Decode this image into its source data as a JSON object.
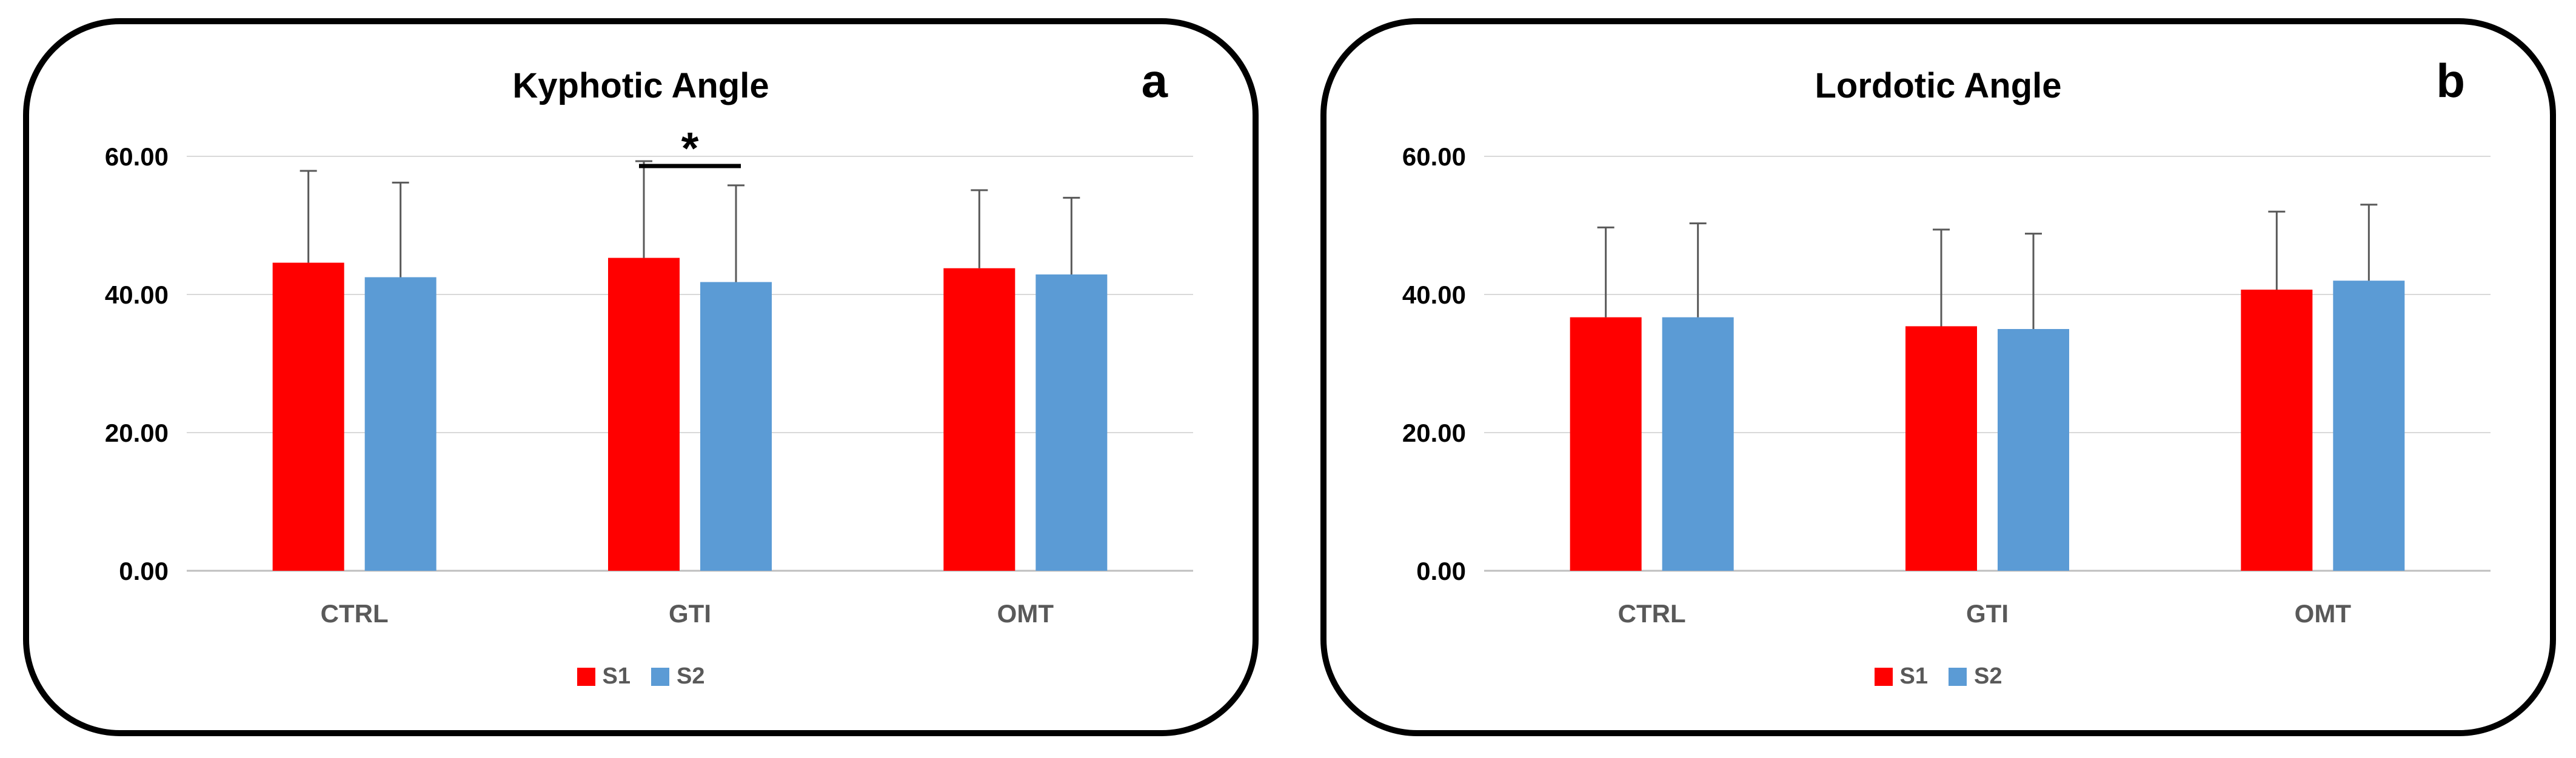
{
  "colors": {
    "S1": "#ff0000",
    "S2": "#5b9bd5",
    "grid": "#d9d9d9",
    "axis": "#595959"
  },
  "chart_data": [
    {
      "type": "bar",
      "panel": "a",
      "title": "Kyphotic Angle",
      "categories": [
        "CTRL",
        "GTI",
        "OMT"
      ],
      "series": [
        {
          "name": "S1",
          "values": [
            44.6,
            45.3,
            43.8
          ],
          "error": [
            13.3,
            14.0,
            11.3
          ]
        },
        {
          "name": "S2",
          "values": [
            42.5,
            41.8,
            42.9
          ],
          "error": [
            13.7,
            14.0,
            11.1
          ]
        }
      ],
      "ylim": [
        0,
        60
      ],
      "yticks": [
        "0.00",
        "20.00",
        "40.00",
        "60.00"
      ],
      "grid": true,
      "legend": "bottom",
      "annotation": {
        "text": "*",
        "category": "GTI"
      }
    },
    {
      "type": "bar",
      "panel": "b",
      "title": "Lordotic Angle",
      "categories": [
        "CTRL",
        "GTI",
        "OMT"
      ],
      "series": [
        {
          "name": "S1",
          "values": [
            36.7,
            35.4,
            40.7
          ],
          "error": [
            13.0,
            14.0,
            11.3
          ]
        },
        {
          "name": "S2",
          "values": [
            36.7,
            35.0,
            42.0
          ],
          "error": [
            13.6,
            13.8,
            11.0
          ]
        }
      ],
      "ylim": [
        0,
        60
      ],
      "yticks": [
        "0.00",
        "20.00",
        "40.00",
        "60.00"
      ],
      "grid": true,
      "legend": "bottom"
    }
  ]
}
